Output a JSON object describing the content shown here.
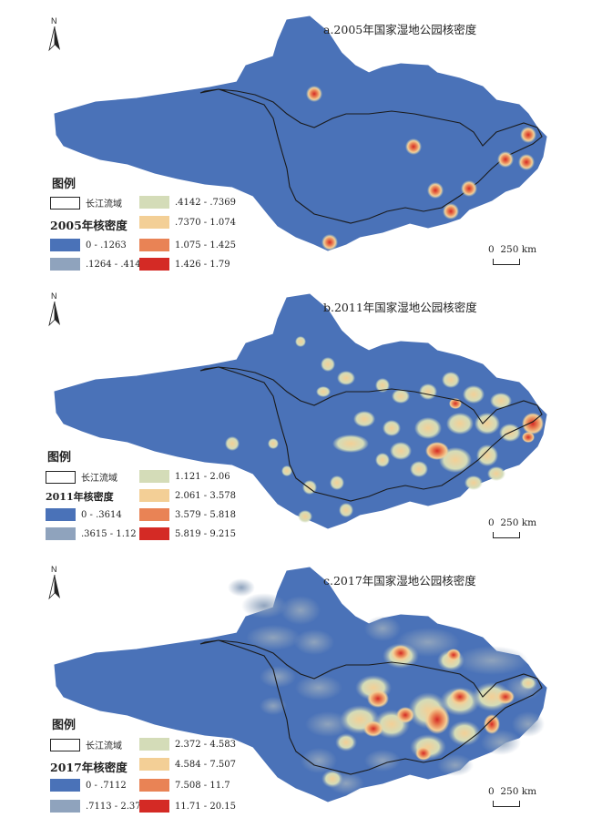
{
  "panels": [
    {
      "title": "a.2005年国家湿地公园核密度",
      "north": "N",
      "legend_title": "图例",
      "basin_label": "长江流域",
      "density_title": "2005年核密度",
      "classes": [
        "0 - .1263",
        ".1264 - .4141",
        ".4142 - .7369",
        ".7370 - 1.074",
        "1.075 - 1.425",
        "1.426 - 1.79"
      ],
      "scale": {
        "zero": "0",
        "dist": "250 km"
      }
    },
    {
      "title": "b.2011年国家湿地公园核密度",
      "north": "N",
      "legend_title": "图例",
      "basin_label": "长江流域",
      "density_title": "2011年核密度",
      "classes": [
        "0 - .3614",
        ".3615 - 1.12",
        "1.121 - 2.06",
        "2.061 - 3.578",
        "3.579 - 5.818",
        "5.819 - 9.215"
      ],
      "scale": {
        "zero": "0",
        "dist": "250 km"
      }
    },
    {
      "title": "c.2017年国家湿地公园核密度",
      "north": "N",
      "legend_title": "图例",
      "basin_label": "长江流域",
      "density_title": "2017年核密度",
      "classes": [
        "0 - .7112",
        ".7113 - 2.371",
        "2.372 - 4.583",
        "4.584 - 7.507",
        "7.508 - 11.7",
        "11.71 - 20.15"
      ],
      "scale": {
        "zero": "0",
        "dist": "250 km"
      }
    }
  ],
  "colors": {
    "class_colors": [
      "#4a72b8",
      "#8fa3bd",
      "#d4dcb8",
      "#f3cf96",
      "#e98355",
      "#d42a25"
    ],
    "region_fill": "#4a72b8",
    "outline": "#1a1a1a"
  }
}
